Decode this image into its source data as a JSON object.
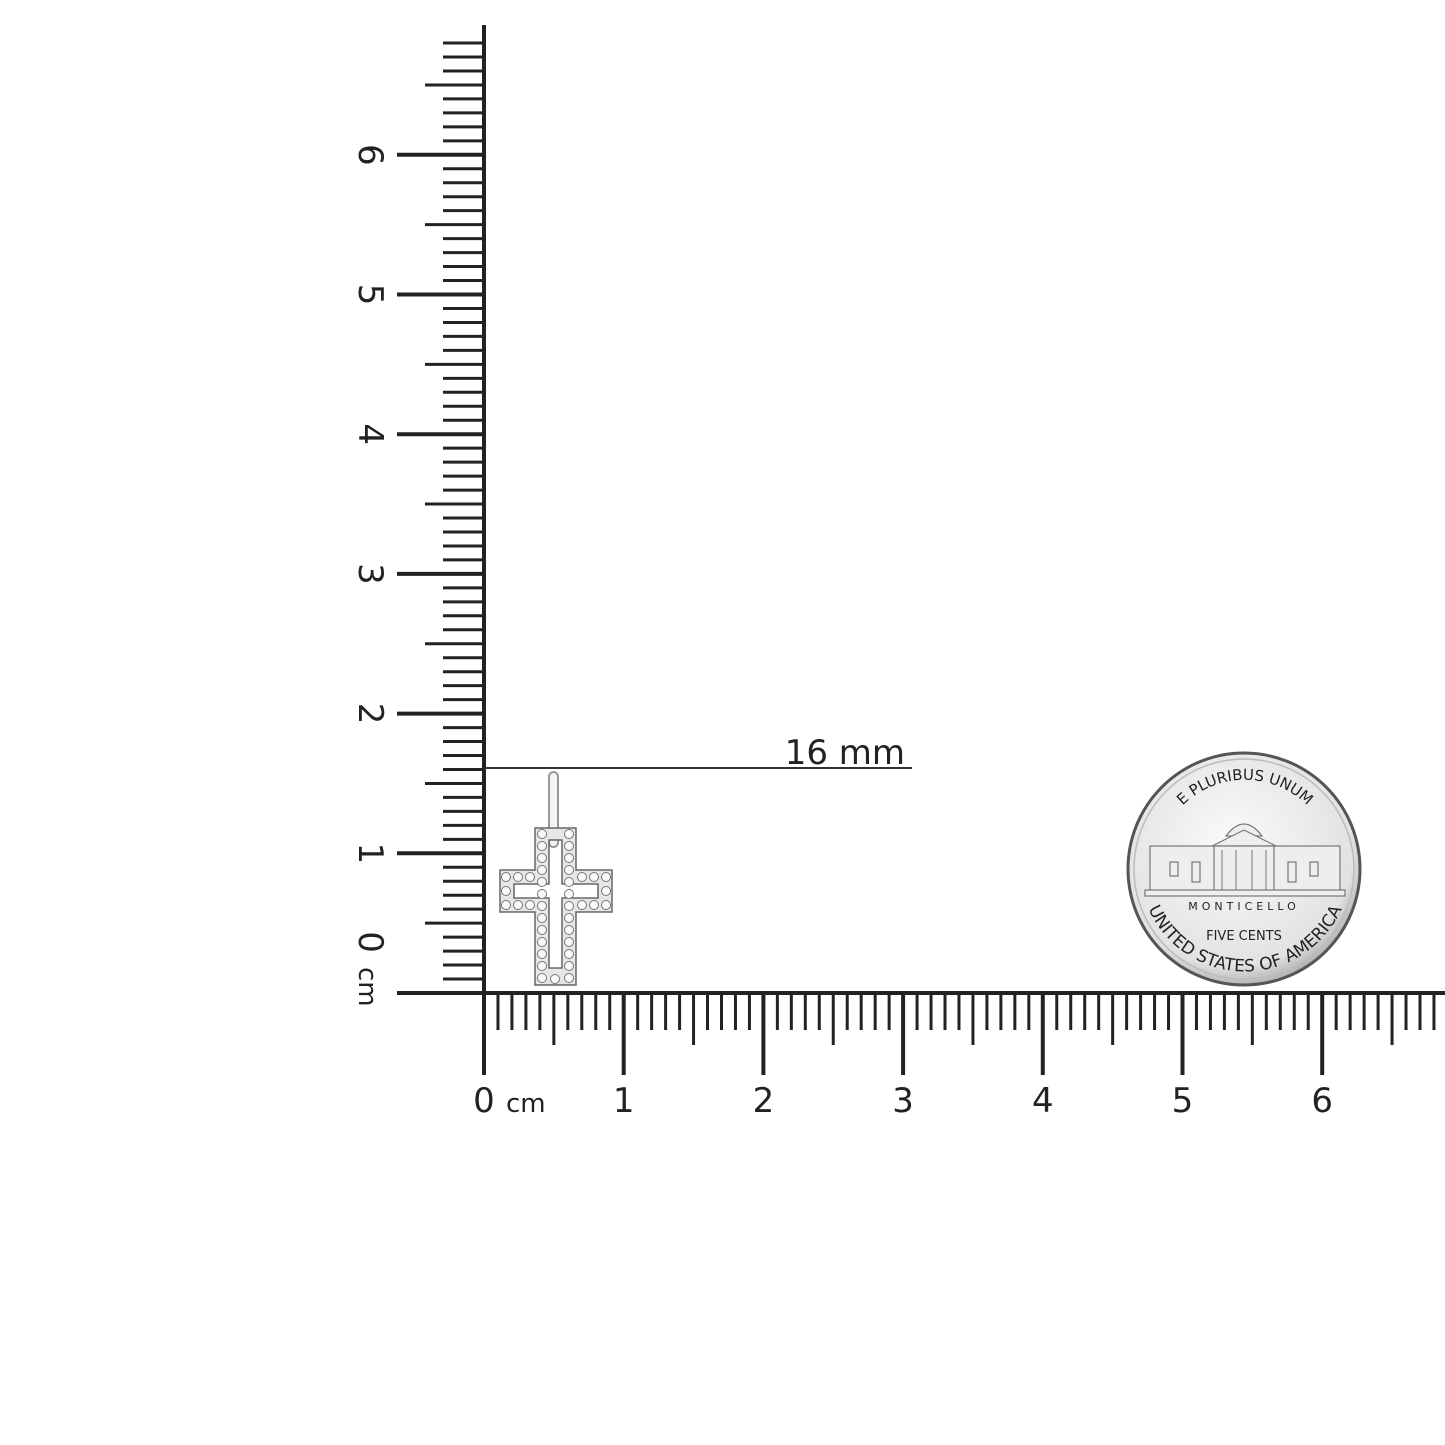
{
  "measurement": {
    "label": "16 mm",
    "value_mm": 16
  },
  "horizontal_ruler": {
    "unit_label": "cm",
    "labels": [
      "0",
      "1",
      "2",
      "3",
      "4",
      "5",
      "6"
    ]
  },
  "vertical_ruler": {
    "unit_label": "cm",
    "labels": [
      "0",
      "1",
      "2",
      "3",
      "4",
      "5",
      "6"
    ]
  },
  "coin": {
    "top_text": "E PLURIBUS UNUM",
    "building": "MONTICELLO",
    "denomination": "FIVE CENTS",
    "bottom_text": "UNITED STATES OF AMERICA"
  },
  "colors": {
    "ruler": "#222222",
    "background": "#ffffff",
    "metal": "#c8c8c8"
  }
}
